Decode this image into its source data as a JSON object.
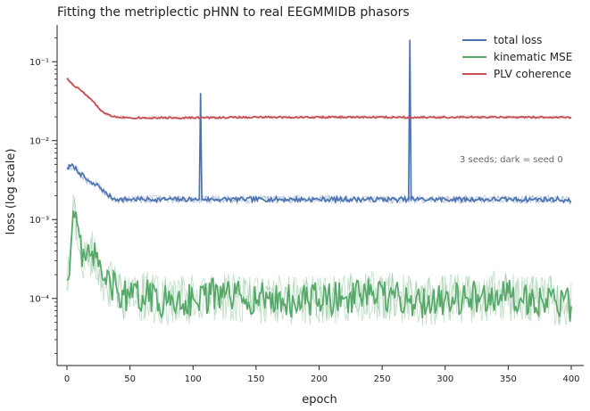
{
  "chart_data": {
    "type": "line",
    "title": "Fitting the metriplectic pHNN to real EEGMMIDB phasors",
    "xlabel": "epoch",
    "ylabel": "loss (log scale)",
    "xlim": [
      0,
      400
    ],
    "ylim": [
      3e-05,
      0.3
    ],
    "y_scale": "log",
    "grid": false,
    "legend_position": "top-right",
    "x_ticks": [
      "0",
      "50",
      "100",
      "150",
      "200",
      "250",
      "300",
      "350",
      "400"
    ],
    "x_tick_values": [
      0,
      50,
      100,
      150,
      200,
      250,
      300,
      350,
      400
    ],
    "y_ticks": [
      "10⁻⁴",
      "10⁻³",
      "10⁻²",
      "10⁻¹"
    ],
    "y_tick_values": [
      0.0001,
      0.001,
      0.01,
      0.1
    ],
    "annotation": "3 seeds; dark = seed 0",
    "series": [
      {
        "name": "total loss",
        "color": "#4c72b0",
        "x": [
          0,
          5,
          10,
          15,
          20,
          25,
          30,
          35,
          40,
          50,
          60,
          70,
          80,
          90,
          100,
          105,
          106,
          107,
          108,
          110,
          120,
          140,
          160,
          180,
          200,
          220,
          240,
          260,
          270,
          271,
          272,
          273,
          275,
          290,
          310,
          330,
          350,
          370,
          390,
          400
        ],
        "values": [
          0.0045,
          0.0048,
          0.0039,
          0.0033,
          0.0028,
          0.0027,
          0.0022,
          0.0019,
          0.0018,
          0.0018,
          0.0018,
          0.0018,
          0.0018,
          0.0018,
          0.0018,
          0.0018,
          0.04,
          0.0018,
          0.0018,
          0.0018,
          0.0018,
          0.0018,
          0.0018,
          0.0018,
          0.0018,
          0.0018,
          0.0018,
          0.0018,
          0.0018,
          0.0018,
          0.19,
          0.0018,
          0.0018,
          0.0018,
          0.0018,
          0.0018,
          0.0018,
          0.0018,
          0.0018,
          0.0017
        ]
      },
      {
        "name": "kinematic MSE",
        "color": "#55a868",
        "x": [
          0,
          3,
          5,
          8,
          10,
          12,
          15,
          18,
          20,
          25,
          30,
          40,
          50,
          60,
          80,
          100,
          120,
          140,
          160,
          180,
          200,
          220,
          240,
          260,
          280,
          300,
          320,
          340,
          360,
          380,
          400
        ],
        "values": [
          0.00017,
          0.0004,
          0.0013,
          0.0009,
          0.0006,
          0.00025,
          0.0003,
          0.00035,
          0.0004,
          0.00025,
          0.00018,
          0.00012,
          0.0001,
          0.00011,
          9e-05,
          0.0001,
          0.00011,
          0.0001,
          0.0001,
          9e-05,
          0.0001,
          0.0001,
          0.00011,
          0.0001,
          9e-05,
          0.0001,
          0.0001,
          0.00011,
          0.0001,
          0.0001,
          8e-05
        ]
      },
      {
        "name": "PLV coherence",
        "color": "#c44e52",
        "x": [
          0,
          5,
          10,
          15,
          20,
          25,
          30,
          35,
          40,
          50,
          100,
          150,
          200,
          250,
          300,
          350,
          400
        ],
        "values": [
          0.062,
          0.05,
          0.045,
          0.038,
          0.032,
          0.026,
          0.022,
          0.0205,
          0.02,
          0.0195,
          0.0195,
          0.0198,
          0.0198,
          0.0198,
          0.0198,
          0.0198,
          0.0197
        ]
      }
    ]
  }
}
